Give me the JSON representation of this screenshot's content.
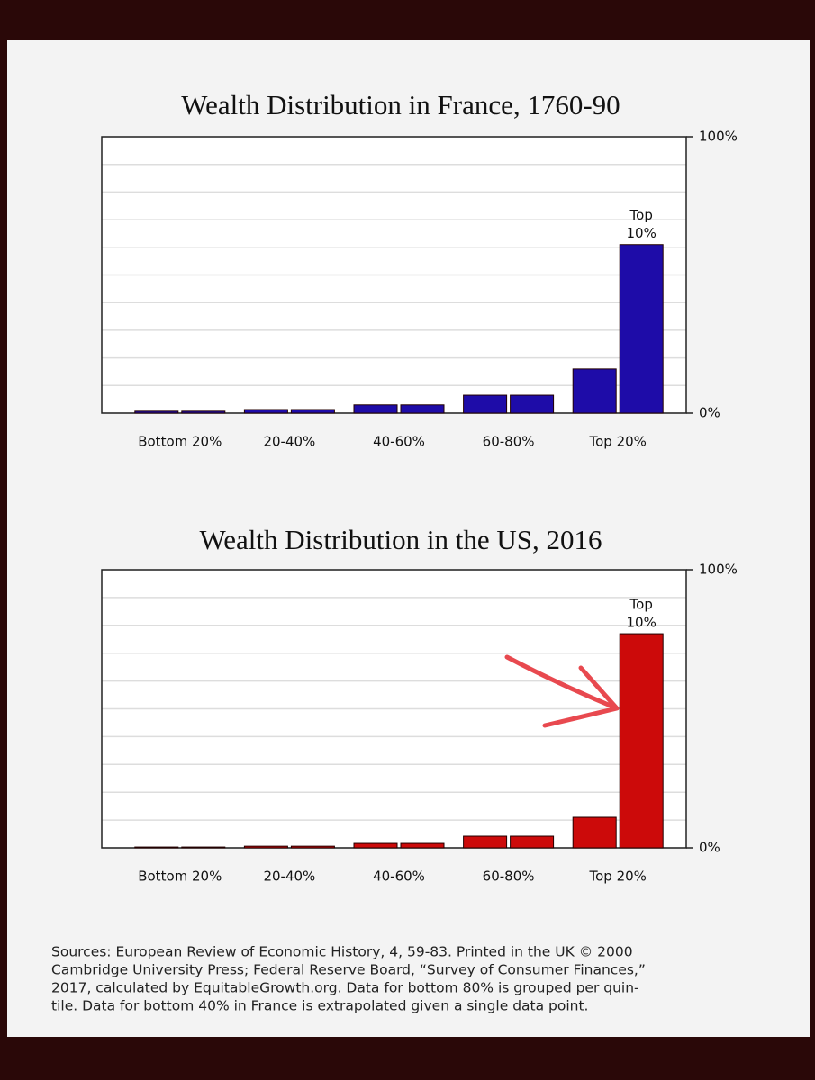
{
  "chart_data": [
    {
      "type": "grouped_bar",
      "title": "Wealth Distribution in France, 1760-90",
      "categories": [
        "Bottom 20%",
        "20-40%",
        "40-60%",
        "60-80%",
        "Top 20%"
      ],
      "values": [
        [
          0.7,
          0.7
        ],
        [
          1.3,
          1.3
        ],
        [
          3,
          3
        ],
        [
          6.5,
          6.5
        ],
        [
          16,
          61
        ]
      ],
      "color": "#1e0ca8",
      "annotation_lines": [
        "Top",
        "10%"
      ],
      "ylim": [
        0,
        100
      ],
      "yticks": [
        {
          "value": 0,
          "label": "0%"
        },
        {
          "value": 10,
          "label": null
        },
        {
          "value": 20,
          "label": null
        },
        {
          "value": 30,
          "label": null
        },
        {
          "value": 40,
          "label": null
        },
        {
          "value": 50,
          "label": null
        },
        {
          "value": 60,
          "label": null
        },
        {
          "value": 70,
          "label": null
        },
        {
          "value": 80,
          "label": null
        },
        {
          "value": 90,
          "label": null
        },
        {
          "value": 100,
          "label": "100%"
        }
      ],
      "grid": true
    },
    {
      "type": "grouped_bar",
      "title": "Wealth Distribution in the US, 2016",
      "categories": [
        "Bottom 20%",
        "20-40%",
        "40-60%",
        "60-80%",
        "Top 20%"
      ],
      "values": [
        [
          0.3,
          0.3
        ],
        [
          0.6,
          0.6
        ],
        [
          1.6,
          1.6
        ],
        [
          4.2,
          4.2
        ],
        [
          11,
          77
        ]
      ],
      "color": "#cc0a0a",
      "annotation_lines": [
        "Top",
        "10%"
      ],
      "ylim": [
        0,
        100
      ],
      "yticks": [
        {
          "value": 0,
          "label": "0%"
        },
        {
          "value": 10,
          "label": null
        },
        {
          "value": 20,
          "label": null
        },
        {
          "value": 30,
          "label": null
        },
        {
          "value": 40,
          "label": null
        },
        {
          "value": 50,
          "label": null
        },
        {
          "value": 60,
          "label": null
        },
        {
          "value": 70,
          "label": null
        },
        {
          "value": 80,
          "label": null
        },
        {
          "value": 90,
          "label": null
        },
        {
          "value": 100,
          "label": "100%"
        }
      ],
      "grid": true
    }
  ],
  "source_lines": [
    "Sources: European Review of Economic History, 4, 59-83. Printed in the UK © 2000",
    "Cambridge University Press; Federal Reserve Board, “Survey of Consumer Finances,”",
    "2017, calculated by EquitableGrowth.org. Data for bottom 80% is grouped per quin-",
    "tile. Data for bottom 40% in France is extrapolated given a single data point."
  ]
}
